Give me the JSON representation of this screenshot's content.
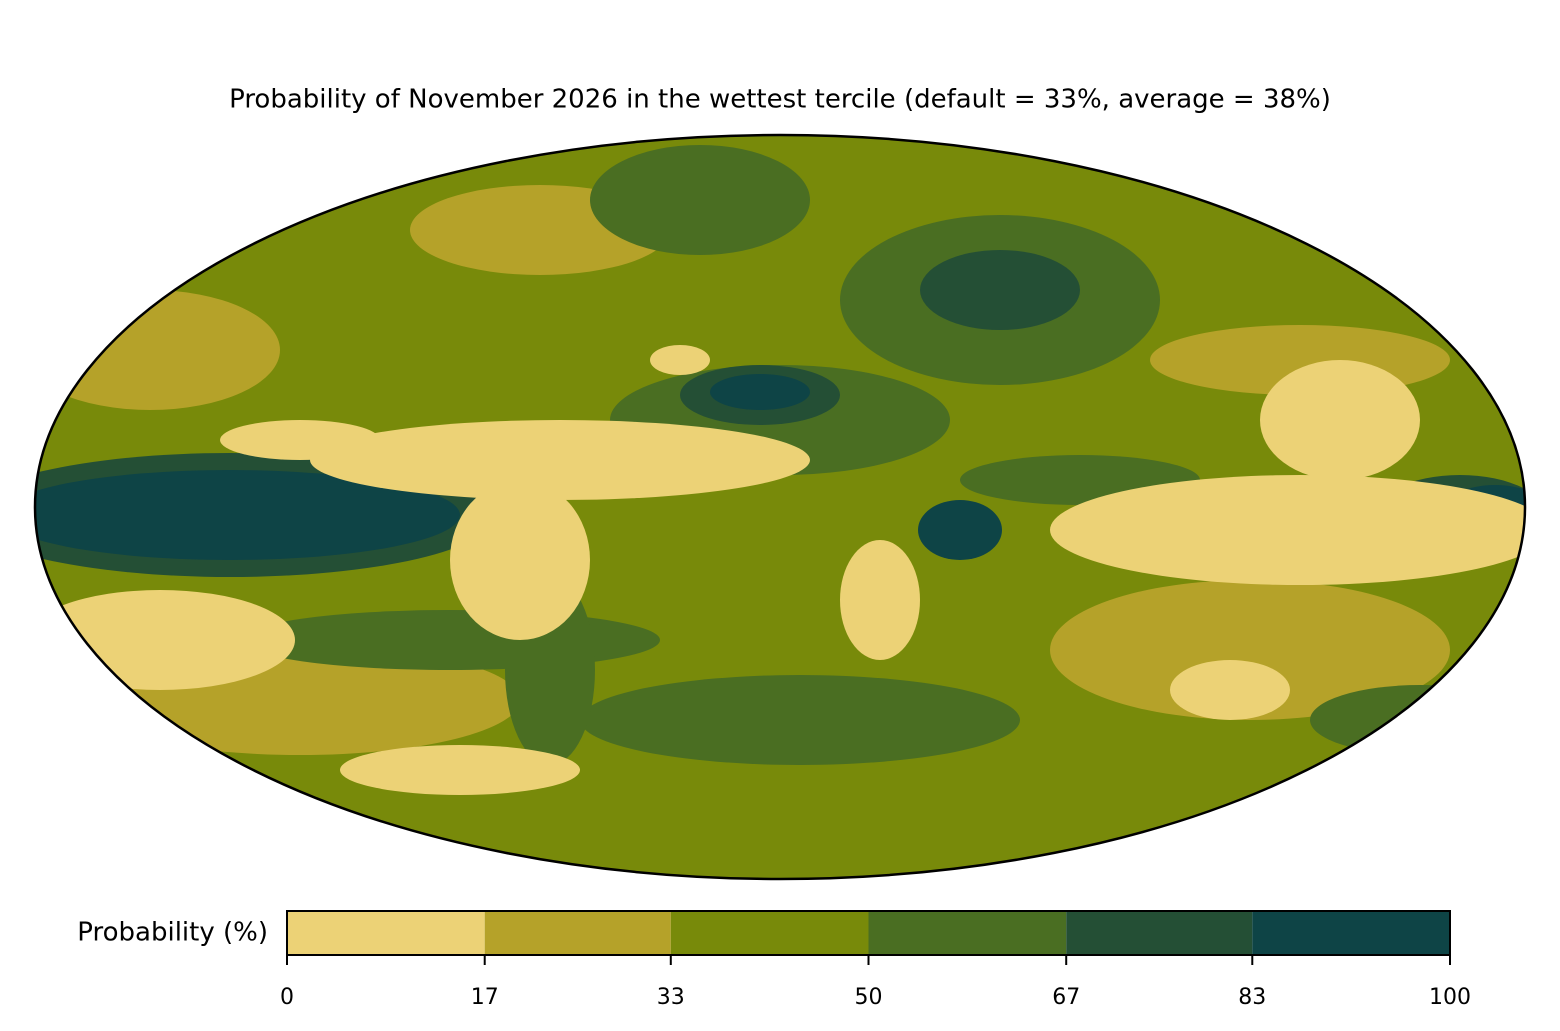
{
  "chart_data": {
    "type": "map",
    "title": "Probability of November 2026 in the wettest tercile (default = 33%, average = 38%)",
    "colorbar": {
      "label": "Probability (%)",
      "ticks": [
        0,
        17,
        33,
        50,
        67,
        83,
        100
      ],
      "colors": [
        "#ecd276",
        "#b5a229",
        "#788a0a",
        "#4a6e22",
        "#244f35",
        "#0e4446"
      ]
    }
  }
}
